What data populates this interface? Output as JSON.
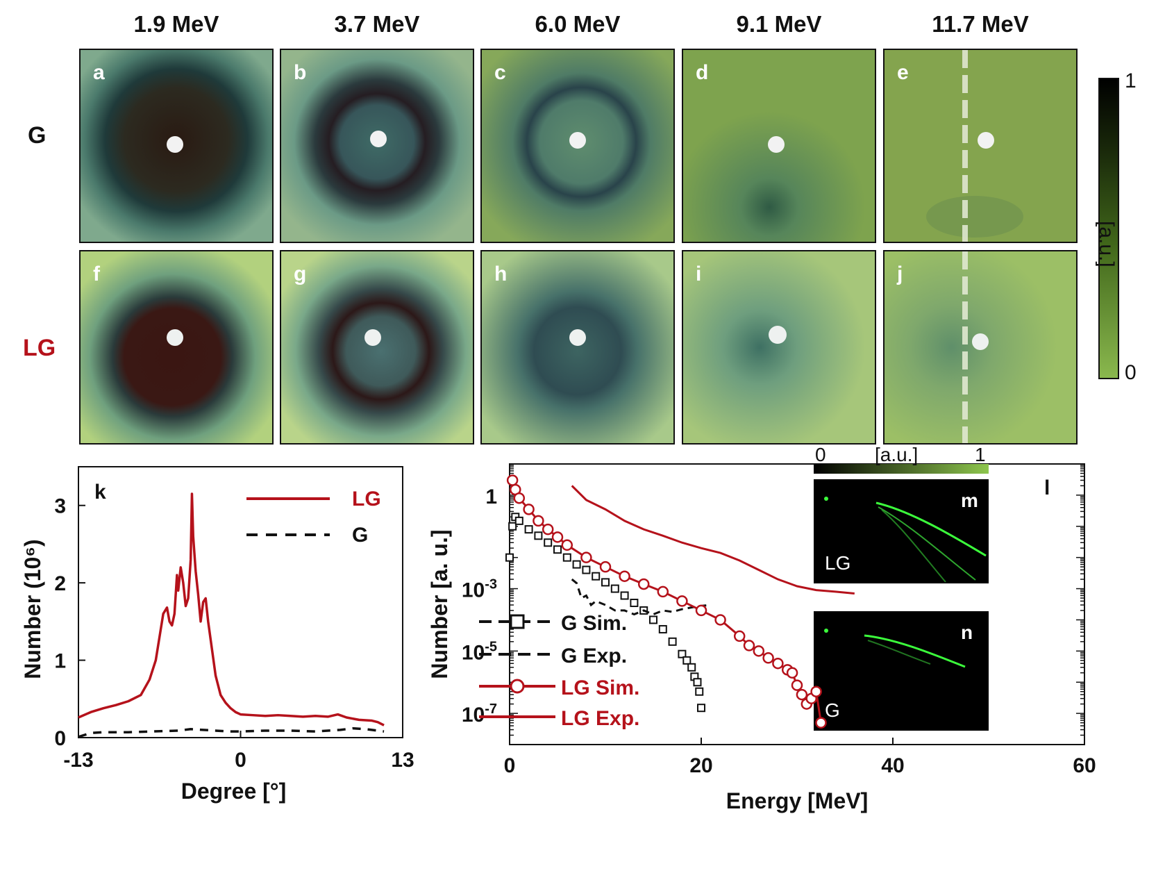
{
  "energies": [
    "1.9 MeV",
    "3.7 MeV",
    "6.0 MeV",
    "9.1 MeV",
    "11.7 MeV"
  ],
  "row_labels": {
    "g": "G",
    "lg": "LG"
  },
  "panel_labels_g": [
    "a",
    "b",
    "c",
    "d",
    "e"
  ],
  "panel_labels_lg": [
    "f",
    "g",
    "h",
    "i",
    "j"
  ],
  "colorbar": {
    "max": "1",
    "min": "0",
    "unit": "[a.u.]"
  },
  "colors": {
    "lg": "#b5121b",
    "g": "#111111",
    "rcf_light": "#8ab84e",
    "rcf_dark": "#000000"
  },
  "chart_data": [
    {
      "id": "k",
      "type": "line",
      "panel_label": "k",
      "xlabel": "Degree [°]",
      "ylabel": "Number  (10⁶)",
      "xlim": [
        -13,
        13
      ],
      "ylim": [
        0,
        3.5
      ],
      "xticks": [
        "-13",
        "0",
        "13"
      ],
      "yticks": [
        "0",
        "1",
        "2",
        "3"
      ],
      "legend": [
        {
          "name": "LG",
          "style": "solid"
        },
        {
          "name": "G",
          "style": "dashed"
        }
      ],
      "series": [
        {
          "name": "LG",
          "color": "#b5121b",
          "style": "solid",
          "x": [
            -13,
            -12,
            -11,
            -10,
            -9,
            -8,
            -7.3,
            -6.8,
            -6.5,
            -6.2,
            -5.9,
            -5.7,
            -5.5,
            -5.3,
            -5.1,
            -5.0,
            -4.8,
            -4.6,
            -4.4,
            -4.2,
            -4.0,
            -3.9,
            -3.8,
            -3.6,
            -3.4,
            -3.2,
            -3.0,
            -2.8,
            -2.6,
            -2.3,
            -2.0,
            -1.6,
            -1.2,
            -0.8,
            -0.4,
            0,
            1,
            2,
            3,
            4,
            5,
            6,
            7,
            7.8,
            8.5,
            9.5,
            10.5,
            11,
            11.5
          ],
          "y": [
            0.26,
            0.33,
            0.38,
            0.42,
            0.47,
            0.55,
            0.75,
            1.0,
            1.3,
            1.6,
            1.68,
            1.5,
            1.45,
            1.6,
            2.1,
            1.9,
            2.2,
            2.0,
            1.7,
            1.8,
            2.3,
            3.15,
            2.6,
            2.15,
            1.85,
            1.5,
            1.75,
            1.8,
            1.5,
            1.15,
            0.8,
            0.55,
            0.45,
            0.38,
            0.33,
            0.3,
            0.29,
            0.28,
            0.29,
            0.28,
            0.27,
            0.28,
            0.27,
            0.3,
            0.26,
            0.23,
            0.22,
            0.2,
            0.16
          ]
        },
        {
          "name": "G",
          "color": "#111111",
          "style": "dashed",
          "x": [
            -13,
            -12,
            -11,
            -9,
            -7,
            -5,
            -4,
            -3,
            -2,
            -1,
            0,
            2,
            4,
            6,
            8,
            9,
            10,
            11,
            11.5
          ],
          "y": [
            0.01,
            0.06,
            0.07,
            0.07,
            0.08,
            0.09,
            0.11,
            0.1,
            0.09,
            0.08,
            0.08,
            0.09,
            0.09,
            0.08,
            0.1,
            0.12,
            0.11,
            0.09,
            0.08
          ]
        }
      ]
    },
    {
      "id": "l",
      "type": "line",
      "panel_label": "l",
      "xlabel": "Energy [MeV]",
      "ylabel": "Number [a. u.]",
      "xlim": [
        0,
        60
      ],
      "yscale": "log",
      "ylim": [
        1e-08,
        10
      ],
      "xticks": [
        "0",
        "20",
        "40",
        "60"
      ],
      "yticks": [
        "1",
        "10-3",
        "10-5",
        "10-7"
      ],
      "legend": [
        "G Sim.",
        "G Exp.",
        "LG Sim.",
        "LG Exp."
      ],
      "series": [
        {
          "name": "G Sim.",
          "color": "#111111",
          "style": "markers-square",
          "x": [
            0,
            0.3,
            0.6,
            1,
            2,
            3,
            4,
            5,
            6,
            7,
            8,
            9,
            10,
            11,
            12,
            13,
            14,
            15,
            16,
            17,
            18,
            18.5,
            19,
            19.3,
            19.6,
            19.8,
            20
          ],
          "y": [
            0.01,
            0.1,
            0.2,
            0.15,
            0.08,
            0.05,
            0.03,
            0.018,
            0.01,
            0.006,
            0.004,
            0.0025,
            0.0016,
            0.001,
            0.0006,
            0.00035,
            0.0002,
            0.0001,
            5e-05,
            2e-05,
            8e-06,
            5e-06,
            3e-06,
            1.5e-06,
            1e-06,
            5e-07,
            1.5e-07
          ]
        },
        {
          "name": "G Exp.",
          "color": "#111111",
          "style": "dashed",
          "x": [
            6.5,
            7,
            7.5,
            8,
            8.5,
            9,
            10,
            11,
            12,
            13,
            14,
            15,
            16,
            17,
            18,
            19,
            20,
            21
          ],
          "y": [
            0.002,
            0.0015,
            0.0005,
            0.0006,
            0.0003,
            0.0004,
            0.0003,
            0.0002,
            0.0002,
            0.00015,
            0.0002,
            0.00015,
            0.0002,
            0.00018,
            0.00022,
            0.00025,
            0.00028,
            0.0003
          ]
        },
        {
          "name": "LG Sim.",
          "color": "#b5121b",
          "style": "markers-circle",
          "x": [
            0.3,
            0.6,
            1,
            2,
            3,
            4,
            5,
            6,
            8,
            10,
            12,
            14,
            16,
            18,
            20,
            22,
            24,
            25,
            26,
            27,
            28,
            29,
            29.5,
            30,
            30.5,
            31,
            31.5,
            32,
            32.5
          ],
          "y": [
            3,
            1.5,
            0.8,
            0.35,
            0.15,
            0.08,
            0.045,
            0.025,
            0.01,
            0.005,
            0.0025,
            0.0014,
            0.0008,
            0.0004,
            0.0002,
            0.0001,
            3e-05,
            1.5e-05,
            1e-05,
            6e-06,
            4e-06,
            2.5e-06,
            2e-06,
            8e-07,
            4e-07,
            2e-07,
            3e-07,
            5e-07,
            5e-08
          ]
        },
        {
          "name": "LG Exp.",
          "color": "#b5121b",
          "style": "solid",
          "x": [
            6.5,
            8,
            10,
            12,
            14,
            16,
            18,
            20,
            22,
            24,
            26,
            28,
            30,
            32,
            34,
            36
          ],
          "y": [
            2,
            0.7,
            0.35,
            0.15,
            0.08,
            0.05,
            0.03,
            0.02,
            0.014,
            0.008,
            0.004,
            0.002,
            0.0012,
            0.0009,
            0.0008,
            0.0007
          ]
        }
      ]
    }
  ],
  "insets": [
    {
      "label": "m",
      "beam": "LG"
    },
    {
      "label": "n",
      "beam": "G"
    }
  ],
  "inset_colorbar": {
    "min": "0",
    "max": "1",
    "unit": "[a.u.]"
  }
}
